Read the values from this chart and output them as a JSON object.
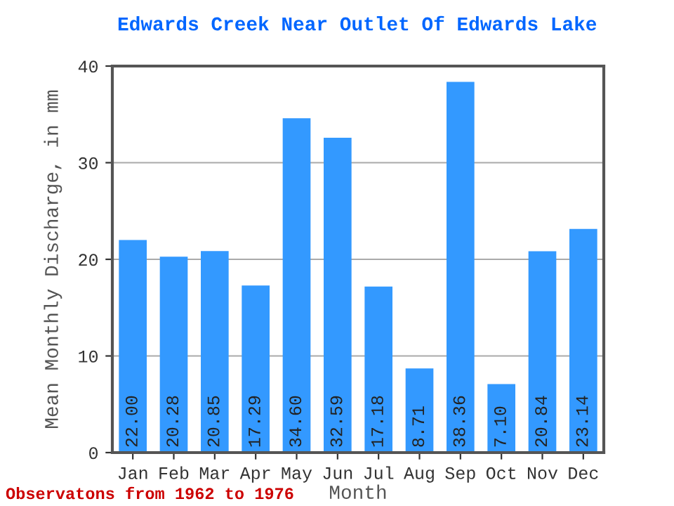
{
  "chart_data": {
    "type": "bar",
    "title": "Edwards Creek Near Outlet Of Edwards Lake",
    "xlabel": "Month",
    "ylabel": "Mean Monthly Discharge, in mm",
    "categories": [
      "Jan",
      "Feb",
      "Mar",
      "Apr",
      "May",
      "Jun",
      "Jul",
      "Aug",
      "Sep",
      "Oct",
      "Nov",
      "Dec"
    ],
    "values": [
      22.0,
      20.28,
      20.85,
      17.29,
      34.6,
      32.59,
      17.18,
      8.71,
      38.36,
      7.1,
      20.84,
      23.14
    ],
    "value_labels": [
      "22.00",
      "20.28",
      "20.85",
      "17.29",
      "34.60",
      "32.59",
      "17.18",
      "8.71",
      "38.36",
      "7.10",
      "20.84",
      "23.14"
    ],
    "color": "#3399ff",
    "ylim": [
      0,
      40
    ],
    "yticks": [
      0,
      10,
      20,
      30,
      40
    ],
    "grid": "y",
    "annotations": [
      "Observatons from 1962 to 1976"
    ]
  }
}
